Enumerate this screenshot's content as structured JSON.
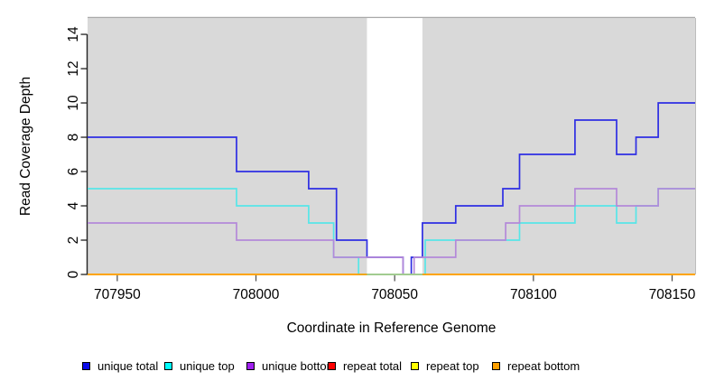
{
  "chart_data": {
    "type": "line",
    "line_style": "step-post",
    "title": "",
    "xlabel": "Coordinate in Reference Genome",
    "ylabel": "Read Coverage Depth",
    "xlim": [
      707939.3,
      708158.3
    ],
    "ylim": [
      0,
      14.95
    ],
    "x_ticks": [
      707950,
      708000,
      708050,
      708100,
      708150
    ],
    "y_ticks": [
      0,
      2,
      4,
      6,
      8,
      10,
      12,
      14
    ],
    "grid": false,
    "legend_position": "bottom",
    "background_color": "#ffffff",
    "shaded_regions": [
      {
        "x0": 707939.3,
        "x1": 708040,
        "color": "#d9d9d9"
      },
      {
        "x0": 708060,
        "x1": 708158.3,
        "color": "#d9d9d9"
      }
    ],
    "region_top_border_color": "#a8a8a8",
    "region_right_border_color": "#bdbdbd",
    "axis_color": "#222222",
    "tick_color": "#555555",
    "gap_zero_overlay": {
      "x0": 708040,
      "x1": 708060,
      "y": 0,
      "color": "#98d09e"
    },
    "series": [
      {
        "name": "repeat total",
        "color": "#dd0000",
        "steps": [
          [
            707939.3,
            0
          ],
          [
            708158.3,
            0
          ]
        ]
      },
      {
        "name": "repeat top",
        "color": "#ffff00",
        "steps": [
          [
            707939.3,
            0
          ],
          [
            708158.3,
            0
          ]
        ]
      },
      {
        "name": "unique total",
        "color": "#2e2ee3",
        "steps": [
          [
            707939.3,
            8
          ],
          [
            707993,
            6
          ],
          [
            708019,
            5
          ],
          [
            708029,
            2
          ],
          [
            708040,
            1
          ],
          [
            708053,
            0
          ],
          [
            708056,
            1
          ],
          [
            708060,
            3
          ],
          [
            708072,
            4
          ],
          [
            708089,
            5
          ],
          [
            708095,
            7
          ],
          [
            708115,
            9
          ],
          [
            708130,
            7
          ],
          [
            708137,
            8
          ],
          [
            708145,
            10
          ],
          [
            708158.3,
            10
          ]
        ]
      },
      {
        "name": "unique top",
        "color": "#57e6e8",
        "steps": [
          [
            707939.3,
            5
          ],
          [
            707993,
            4
          ],
          [
            708019,
            3
          ],
          [
            708028,
            1
          ],
          [
            708037,
            0
          ],
          [
            708061,
            2
          ],
          [
            708095,
            3
          ],
          [
            708115,
            4
          ],
          [
            708130,
            3
          ],
          [
            708137,
            4
          ],
          [
            708145,
            5
          ],
          [
            708158.3,
            5
          ]
        ]
      },
      {
        "name": "unique bottom",
        "color": "#b489d9",
        "steps": [
          [
            707939.3,
            3
          ],
          [
            707993,
            2
          ],
          [
            708028,
            1
          ],
          [
            708053,
            0
          ],
          [
            708057,
            1
          ],
          [
            708072,
            2
          ],
          [
            708090,
            3
          ],
          [
            708095,
            4
          ],
          [
            708115,
            5
          ],
          [
            708130,
            4
          ],
          [
            708145,
            5
          ],
          [
            708158.3,
            5
          ]
        ]
      },
      {
        "name": "repeat bottom",
        "color": "#ff9f00",
        "steps": [
          [
            707939.3,
            0
          ],
          [
            708158.3,
            0
          ]
        ]
      }
    ]
  },
  "legend": {
    "items": [
      {
        "label": "unique total",
        "color": "#0b0beb"
      },
      {
        "label": "unique top",
        "color": "#00ffff"
      },
      {
        "label": "unique bottom",
        "color": "#a020f0"
      },
      {
        "label": "repeat total",
        "color": "#ff0000"
      },
      {
        "label": "repeat top",
        "color": "#ffff00"
      },
      {
        "label": "repeat bottom",
        "color": "#ffa000"
      }
    ]
  }
}
